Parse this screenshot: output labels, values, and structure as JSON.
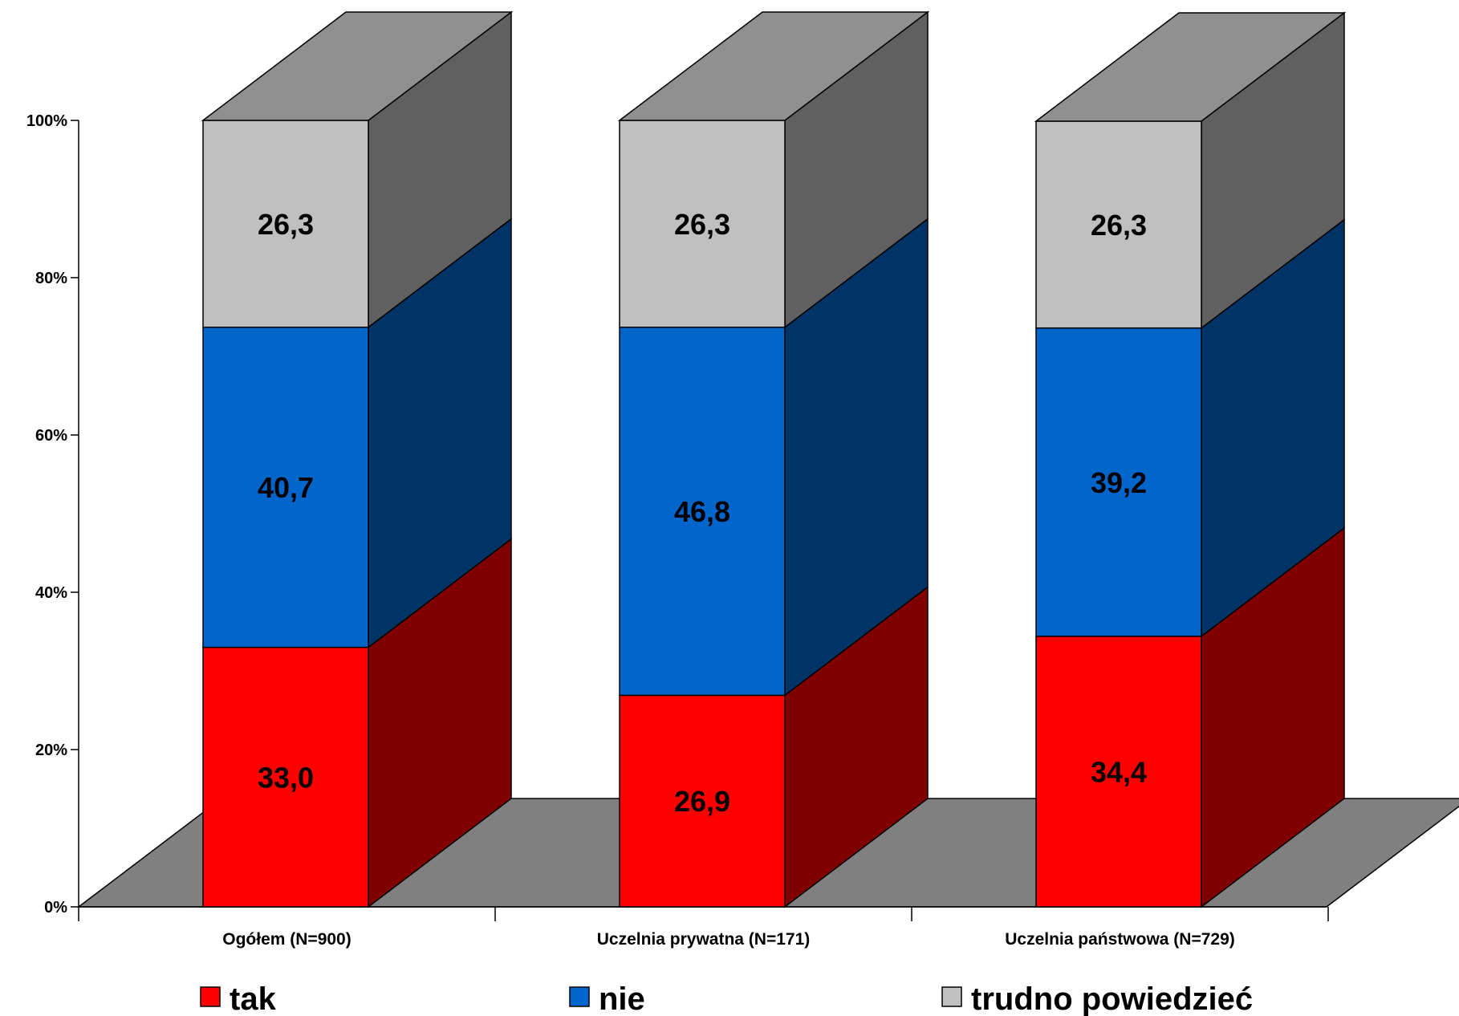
{
  "chart_data": {
    "type": "bar",
    "stacked": true,
    "percent_stacked": true,
    "three_d": true,
    "categories": [
      "Ogółem (N=900)",
      "Uczelnia prywatna (N=171)",
      "Uczelnia państwowa (N=729)"
    ],
    "series": [
      {
        "name": "tak",
        "values": [
          33.0,
          26.9,
          34.4
        ],
        "labels": [
          "33,0",
          "26,9",
          "34,4"
        ],
        "color": "#ff0000"
      },
      {
        "name": "nie",
        "values": [
          40.7,
          46.8,
          39.2
        ],
        "labels": [
          "40,7",
          "46,8",
          "39,2"
        ],
        "color": "#0066cc"
      },
      {
        "name": "trudno powiedzieć",
        "values": [
          26.3,
          26.3,
          26.3
        ],
        "labels": [
          "26,3",
          "26,3",
          "26,3"
        ],
        "color": "#c0c0c0"
      }
    ],
    "y_ticks": [
      "0%",
      "20%",
      "40%",
      "60%",
      "80%",
      "100%"
    ],
    "ylim": [
      0,
      100
    ],
    "grid": false,
    "legend": "bottom"
  }
}
